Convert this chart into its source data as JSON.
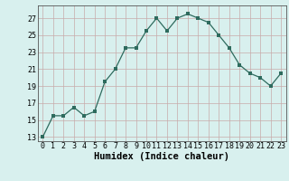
{
  "x": [
    0,
    1,
    2,
    3,
    4,
    5,
    6,
    7,
    8,
    9,
    10,
    11,
    12,
    13,
    14,
    15,
    16,
    17,
    18,
    19,
    20,
    21,
    22,
    23
  ],
  "y": [
    13,
    15.5,
    15.5,
    16.5,
    15.5,
    16,
    19.5,
    21,
    23.5,
    23.5,
    25.5,
    27,
    25.5,
    27,
    27.5,
    27,
    26.5,
    25,
    23.5,
    21.5,
    20.5,
    20,
    19,
    20.5
  ],
  "line_color": "#2e6b5e",
  "marker": "s",
  "marker_size": 2.5,
  "bg_color": "#d8f0ee",
  "grid_color": "#c8aaaa",
  "xlabel": "Humidex (Indice chaleur)",
  "xlabel_fontsize": 7.5,
  "ylabel_ticks": [
    13,
    15,
    17,
    19,
    21,
    23,
    25,
    27
  ],
  "ylim": [
    12.5,
    28.5
  ],
  "xlim": [
    -0.5,
    23.5
  ],
  "xtick_labels": [
    "0",
    "1",
    "2",
    "3",
    "4",
    "5",
    "6",
    "7",
    "8",
    "9",
    "10",
    "11",
    "12",
    "13",
    "14",
    "15",
    "16",
    "17",
    "18",
    "19",
    "20",
    "21",
    "22",
    "23"
  ],
  "tick_fontsize": 6.0
}
